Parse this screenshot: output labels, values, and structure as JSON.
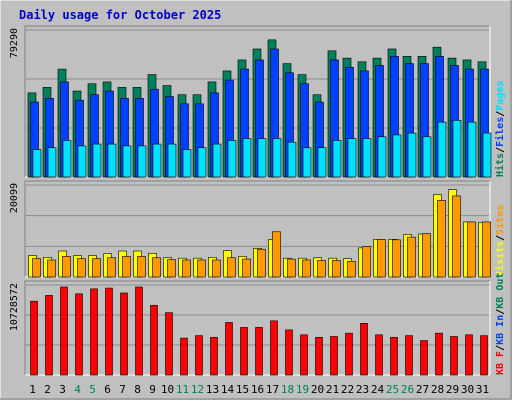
{
  "title": "Daily usage for October 2025",
  "colors": {
    "background": "#c0c0c0",
    "panel": "#c0c0c0",
    "grid": "#8c8c8c",
    "title": "#0000cc",
    "hits": "#00805c",
    "files": "#0040ff",
    "pages": "#00e0ff",
    "visits": "#ffff00",
    "sites": "#ff9900",
    "kbin": "#0040ff",
    "kbout": "#00805c",
    "kbf": "#ff0000",
    "weekend_label": "#00805c"
  },
  "chart_data": [
    {
      "type": "bar",
      "name": "hits-files-pages",
      "categories": [
        "1",
        "2",
        "3",
        "4",
        "5",
        "6",
        "7",
        "8",
        "9",
        "10",
        "11",
        "12",
        "13",
        "14",
        "15",
        "16",
        "17",
        "18",
        "19",
        "20",
        "21",
        "22",
        "23",
        "24",
        "25",
        "26",
        "27",
        "28",
        "29",
        "30",
        "31"
      ],
      "weekend_days": [
        "4",
        "5",
        "11",
        "12",
        "18",
        "19",
        "25",
        "26"
      ],
      "ymax_label": "79290",
      "ymax": 79290,
      "legend": [
        {
          "text": "Hits",
          "color": "#00805c"
        },
        {
          "text": "/",
          "color": "#000000"
        },
        {
          "text": "Files",
          "color": "#0040ff"
        },
        {
          "text": "/",
          "color": "#000000"
        },
        {
          "text": "Pages",
          "color": "#00e0ff"
        }
      ],
      "series": [
        {
          "name": "Hits",
          "values": [
            46000,
            49000,
            59000,
            47000,
            51000,
            52000,
            49000,
            49000,
            56000,
            50000,
            45000,
            45000,
            52000,
            58000,
            64000,
            70000,
            75000,
            62000,
            56000,
            45000,
            69000,
            65000,
            63000,
            65000,
            70000,
            66000,
            66000,
            71000,
            65000,
            64000,
            63000
          ]
        },
        {
          "name": "Files",
          "values": [
            41000,
            43000,
            52000,
            42000,
            45000,
            47000,
            43000,
            43000,
            48000,
            44000,
            40000,
            40000,
            46000,
            53000,
            59000,
            64000,
            70000,
            57000,
            51000,
            41000,
            64000,
            60000,
            58000,
            61000,
            66000,
            62000,
            62000,
            66000,
            61000,
            59000,
            59000
          ]
        },
        {
          "name": "Pages",
          "values": [
            15000,
            16000,
            20000,
            17000,
            18000,
            18000,
            17000,
            17000,
            18000,
            18000,
            15000,
            16000,
            18000,
            20000,
            21000,
            21000,
            21000,
            19000,
            16000,
            16000,
            20000,
            21000,
            21000,
            22000,
            23000,
            24000,
            22000,
            30000,
            31000,
            30000,
            24000
          ]
        }
      ]
    },
    {
      "type": "bar",
      "name": "visits-sites",
      "ymax_label": "20099",
      "ymax": 20099,
      "legend": [
        {
          "text": "Visits",
          "color": "#ffff00"
        },
        {
          "text": "/",
          "color": "#000000"
        },
        {
          "text": "Sites",
          "color": "#ff9900"
        }
      ],
      "series": [
        {
          "name": "Visits",
          "values": [
            4800,
            4400,
            5800,
            4800,
            4800,
            5200,
            5800,
            5800,
            5300,
            4300,
            4200,
            4200,
            4400,
            5900,
            4600,
            6400,
            8400,
            4200,
            4200,
            4300,
            4200,
            4100,
            6500,
            8400,
            8400,
            9500,
            9600,
            18400,
            19500,
            12300,
            12200
          ]
        },
        {
          "name": "Sites",
          "values": [
            4100,
            3800,
            4600,
            4100,
            4100,
            4300,
            4600,
            4600,
            4300,
            3900,
            3800,
            3800,
            3800,
            4300,
            4000,
            6200,
            10100,
            4000,
            3800,
            3700,
            3700,
            3500,
            6800,
            8400,
            8300,
            8900,
            9700,
            17100,
            18100,
            12300,
            12300
          ]
        }
      ]
    },
    {
      "type": "bar",
      "name": "kb-f",
      "ymax_label": "10728572",
      "ymax": 10728572,
      "legend": [
        {
          "text": "KB F",
          "color": "#ff0000"
        },
        {
          "text": "/",
          "color": "#000000"
        },
        {
          "text": "KB In",
          "color": "#0040ff"
        },
        {
          "text": "/",
          "color": "#000000"
        },
        {
          "text": "KB Out",
          "color": "#00805c"
        }
      ],
      "series": [
        {
          "name": "KB F",
          "values": [
            9000000,
            9700000,
            10728572,
            9900000,
            10500000,
            10600000,
            10000000,
            10728572,
            8500000,
            7600000,
            4500000,
            4800000,
            4600000,
            6400000,
            5800000,
            5800000,
            6600000,
            5500000,
            4900000,
            4600000,
            4700000,
            5100000,
            6300000,
            4900000,
            4600000,
            4800000,
            4200000,
            5100000,
            4700000,
            4900000,
            4800000
          ]
        }
      ]
    }
  ]
}
